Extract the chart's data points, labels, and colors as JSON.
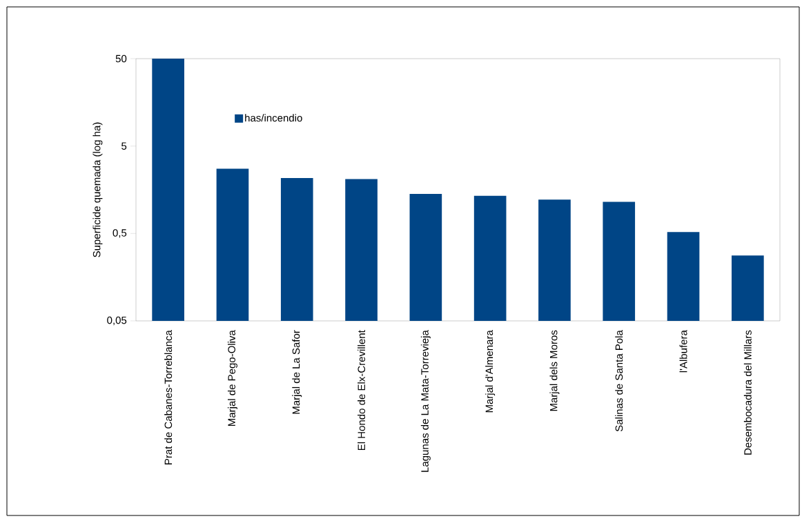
{
  "chart_data": {
    "type": "bar",
    "ylabel": "Superficide quemada (log ha)",
    "categories": [
      "Prat de Cabanes-Torreblanca",
      "Marjal de Pego-Oliva",
      "Marjal de La Safor",
      "El Hondo de Elx-Crevillent",
      "Lagunas de La Mata-Torrevieja",
      "Marjal d'Almenara",
      "Marjal dels Moros",
      "Salinas de Santa Pola",
      "l'Albufera",
      "Desembocadura del Millars"
    ],
    "series": [
      {
        "name": "has/incendio",
        "color": "#004586",
        "values": [
          50,
          2.75,
          2.15,
          2.1,
          1.42,
          1.35,
          1.22,
          1.15,
          0.52,
          0.28
        ]
      }
    ],
    "log": "y",
    "ylim": [
      0.05,
      50
    ],
    "yticks": [
      {
        "value": 0.05,
        "label": "0,05"
      },
      {
        "value": 0.5,
        "label": "0,5"
      },
      {
        "value": 5,
        "label": "5"
      },
      {
        "value": 50,
        "label": "50"
      }
    ],
    "grid": false,
    "legend": "top left"
  }
}
